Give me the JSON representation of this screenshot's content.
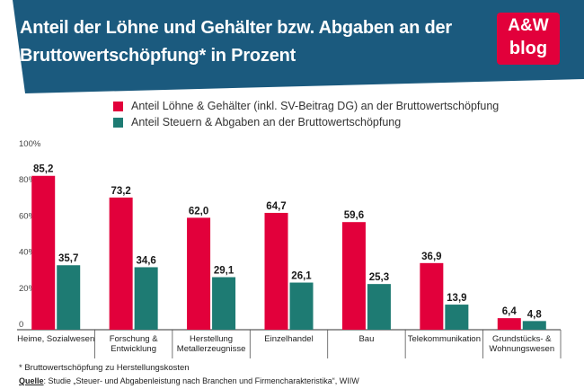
{
  "header": {
    "title_line1": "Anteil der Löhne und Gehälter bzw. Abgaben an der",
    "title_line2": "Bruttowertschöpfung* in Prozent",
    "logo_brand": "A&W",
    "logo_sub": "blog"
  },
  "colors": {
    "header_bg": "#1b5a7e",
    "logo_bg": "#e2003b",
    "series_wages": "#e2003b",
    "series_taxes": "#1e7b73"
  },
  "chart_data": {
    "type": "bar",
    "categories": [
      "Heime, Sozialwesen",
      "Forschung & Entwicklung",
      "Herstellung Metallerzeugnisse",
      "Einzelhandel",
      "Bau",
      "Telekommunikation",
      "Grundstücks- & Wohnungswesen"
    ],
    "category_lines": [
      [
        "Heime, Sozialwesen"
      ],
      [
        "Forschung &",
        "Entwicklung"
      ],
      [
        "Herstellung",
        "Metallerzeugnisse"
      ],
      [
        "Einzelhandel"
      ],
      [
        "Bau"
      ],
      [
        "Telekommunikation"
      ],
      [
        "Grundstücks- &",
        "Wohnungswesen"
      ]
    ],
    "series": [
      {
        "name": "Anteil Löhne & Gehälter (inkl. SV-Beitrag DG) an der Bruttowertschöpfung",
        "values": [
          85.2,
          73.2,
          62.0,
          64.7,
          59.6,
          36.9,
          6.4
        ],
        "labels": [
          "85,2",
          "73,2",
          "62,0",
          "64,7",
          "59,6",
          "36,9",
          "6,4"
        ]
      },
      {
        "name": "Anteil Steuern & Abgaben an der Bruttowertschöpfung",
        "values": [
          35.7,
          34.6,
          29.1,
          26.1,
          25.3,
          13.9,
          4.8
        ],
        "labels": [
          "35,7",
          "34,6",
          "29,1",
          "26,1",
          "25,3",
          "13,9",
          "4,8"
        ]
      }
    ],
    "yticks": [
      0,
      20,
      40,
      60,
      80,
      100
    ],
    "ytick_labels": [
      "0",
      "20%",
      "40%",
      "60%",
      "80%",
      "100%"
    ],
    "ylim": [
      0,
      100
    ],
    "grid": false,
    "legend_position": "top"
  },
  "footer": {
    "footnote": "* Bruttowertschöpfung zu Herstellungskosten",
    "source_label": "Quelle",
    "source_text": ": Studie „Steuer- und Abgabenleistung nach Branchen und Firmencharakteristika“, WIIW"
  }
}
